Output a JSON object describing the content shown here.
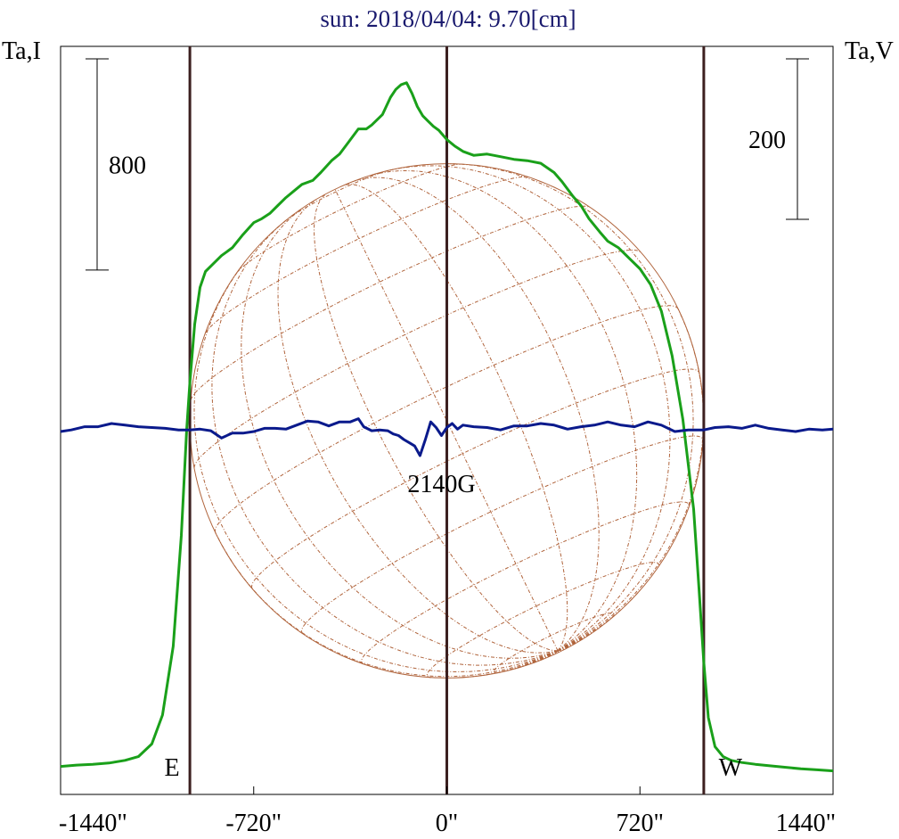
{
  "chart_data": {
    "type": "line",
    "title": "sun: 2018/04/04: 9.70[cm]",
    "left_axis_label": "Ta,I",
    "right_axis_label": "Ta,V",
    "x_ticks": [
      {
        "value": -1440,
        "label": "-1440\""
      },
      {
        "value": -720,
        "label": "-720\""
      },
      {
        "value": 0,
        "label": "0\""
      },
      {
        "value": 720,
        "label": "720\""
      },
      {
        "value": 1440,
        "label": "1440\""
      }
    ],
    "xlim": [
      -1440,
      1440
    ],
    "scale_bars": {
      "intensity": {
        "label": "800",
        "value": 800
      },
      "polarization": {
        "label": "200",
        "value": 200
      }
    },
    "markers": [
      {
        "label": "E",
        "x": -958
      },
      {
        "label": "W",
        "x": 958
      }
    ],
    "center_line_x": 0,
    "region_annotation": {
      "label": "2140G",
      "x": -20
    },
    "solar_radius_arcsec": 958,
    "colors": {
      "title": "#1a1a6e",
      "intensity": "#1aa01a",
      "polarization": "#0a1a8c",
      "solar_disk": "#b0643c",
      "limb_lines": "#3c2020",
      "axes": "#000000"
    },
    "series": [
      {
        "name": "Ta,I",
        "axis": "left",
        "x": [
          -1440,
          -1380,
          -1320,
          -1260,
          -1200,
          -1150,
          -1100,
          -1060,
          -1020,
          -990,
          -970,
          -958,
          -940,
          -920,
          -900,
          -870,
          -840,
          -800,
          -760,
          -720,
          -690,
          -660,
          -630,
          -600,
          -570,
          -540,
          -500,
          -470,
          -430,
          -400,
          -370,
          -330,
          -300,
          -280,
          -240,
          -210,
          -190,
          -170,
          -150,
          -130,
          -110,
          -90,
          -70,
          -50,
          -30,
          0,
          30,
          60,
          100,
          150,
          200,
          250,
          300,
          350,
          400,
          430,
          470,
          500,
          530,
          570,
          600,
          640,
          680,
          720,
          760,
          800,
          840,
          880,
          920,
          940,
          958,
          975,
          1000,
          1030,
          1060,
          1100,
          1150,
          1200,
          1260,
          1320,
          1380,
          1440
        ],
        "values": [
          25,
          30,
          33,
          38,
          48,
          62,
          110,
          220,
          480,
          900,
          1300,
          1480,
          1700,
          1840,
          1900,
          1930,
          1960,
          1990,
          2040,
          2085,
          2100,
          2120,
          2150,
          2180,
          2205,
          2230,
          2245,
          2275,
          2320,
          2345,
          2385,
          2440,
          2440,
          2455,
          2495,
          2560,
          2590,
          2608,
          2615,
          2575,
          2525,
          2490,
          2470,
          2450,
          2435,
          2400,
          2375,
          2355,
          2340,
          2345,
          2335,
          2325,
          2320,
          2310,
          2275,
          2240,
          2185,
          2150,
          2100,
          2050,
          2015,
          1990,
          1950,
          1910,
          1850,
          1750,
          1580,
          1340,
          1000,
          700,
          420,
          210,
          100,
          62,
          48,
          40,
          33,
          28,
          22,
          16,
          12,
          8
        ]
      },
      {
        "name": "Ta,V",
        "axis": "right",
        "x": [
          -1440,
          -1400,
          -1350,
          -1300,
          -1250,
          -1200,
          -1150,
          -1100,
          -1050,
          -1000,
          -958,
          -920,
          -880,
          -840,
          -800,
          -760,
          -720,
          -680,
          -640,
          -600,
          -560,
          -520,
          -480,
          -440,
          -400,
          -360,
          -330,
          -310,
          -280,
          -250,
          -220,
          -200,
          -180,
          -160,
          -140,
          -120,
          -100,
          -80,
          -60,
          -40,
          -20,
          0,
          20,
          40,
          60,
          100,
          150,
          200,
          250,
          300,
          350,
          400,
          450,
          500,
          550,
          600,
          650,
          700,
          750,
          800,
          850,
          900,
          958,
          1000,
          1050,
          1100,
          1150,
          1200,
          1250,
          1300,
          1350,
          1400,
          1440
        ],
        "values": [
          0,
          2,
          6,
          6,
          10,
          8,
          6,
          5,
          4,
          2,
          2,
          3,
          1,
          -8,
          -2,
          -2,
          0,
          4,
          4,
          3,
          8,
          13,
          12,
          7,
          12,
          12,
          16,
          6,
          1,
          2,
          1,
          -3,
          -5,
          -10,
          -14,
          -18,
          -30,
          -10,
          12,
          5,
          -5,
          5,
          10,
          3,
          8,
          6,
          5,
          2,
          7,
          7,
          10,
          8,
          3,
          6,
          8,
          12,
          8,
          6,
          12,
          8,
          0,
          2,
          2,
          5,
          6,
          4,
          8,
          4,
          2,
          0,
          3,
          2,
          3
        ]
      }
    ]
  }
}
